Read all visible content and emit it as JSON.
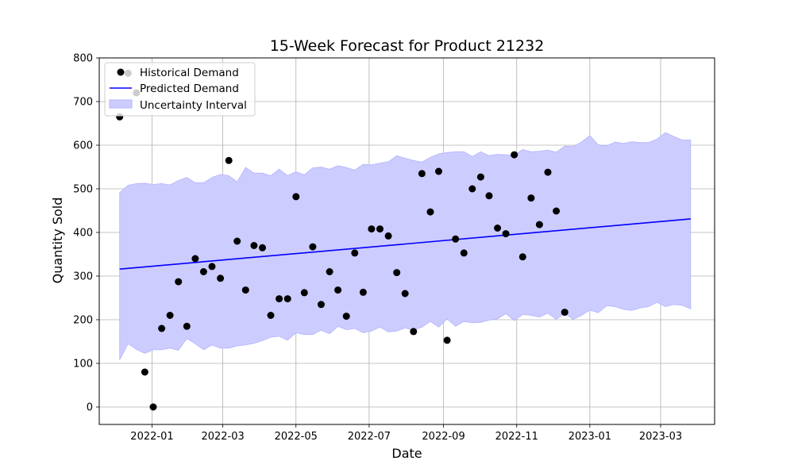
{
  "chart_data": {
    "type": "line",
    "title": "15-Week Forecast for Product 21232",
    "xlabel": "Date",
    "ylabel": "Quantity Sold",
    "xlim": [
      "2021-11-18",
      "2023-04-15"
    ],
    "ylim": [
      -40,
      800
    ],
    "grid": true,
    "legend_position": "top-left",
    "x_ticks": [
      "2022-01",
      "2022-03",
      "2022-05",
      "2022-07",
      "2022-09",
      "2022-11",
      "2023-01",
      "2023-03"
    ],
    "y_ticks": [
      "0",
      "100",
      "200",
      "300",
      "400",
      "500",
      "600",
      "700",
      "800"
    ],
    "colors": {
      "historical": "#000000",
      "predicted": "#0000ff",
      "interval": "#ccccff",
      "interval_edge": "#b3b3ff",
      "grid": "#b0b0b0"
    },
    "series": [
      {
        "name": "Historical Demand",
        "kind": "scatter",
        "x": [
          "2021-12-05",
          "2021-12-12",
          "2021-12-19",
          "2021-12-26",
          "2022-01-02",
          "2022-01-09",
          "2022-01-16",
          "2022-01-23",
          "2022-01-30",
          "2022-02-06",
          "2022-02-13",
          "2022-02-20",
          "2022-02-27",
          "2022-03-06",
          "2022-03-13",
          "2022-03-20",
          "2022-03-27",
          "2022-04-03",
          "2022-04-10",
          "2022-04-17",
          "2022-04-24",
          "2022-05-01",
          "2022-05-08",
          "2022-05-15",
          "2022-05-22",
          "2022-05-29",
          "2022-06-05",
          "2022-06-12",
          "2022-06-19",
          "2022-06-26",
          "2022-07-03",
          "2022-07-10",
          "2022-07-17",
          "2022-07-24",
          "2022-07-31",
          "2022-08-07",
          "2022-08-14",
          "2022-08-21",
          "2022-08-28",
          "2022-09-04",
          "2022-09-11",
          "2022-09-18",
          "2022-09-25",
          "2022-10-02",
          "2022-10-09",
          "2022-10-16",
          "2022-10-23",
          "2022-10-30",
          "2022-11-06",
          "2022-11-13",
          "2022-11-20",
          "2022-11-27",
          "2022-12-04",
          "2022-12-11"
        ],
        "y": [
          665,
          765,
          720,
          80,
          0,
          180,
          210,
          287,
          185,
          340,
          310,
          322,
          295,
          565,
          380,
          268,
          370,
          365,
          210,
          248,
          248,
          482,
          262,
          367,
          235,
          310,
          268,
          208,
          353,
          263,
          408,
          408,
          392,
          308,
          260,
          173,
          535,
          447,
          540,
          153,
          385,
          353,
          500,
          527,
          484,
          410,
          397,
          578,
          344,
          479,
          418,
          538,
          449,
          217
        ]
      },
      {
        "name": "Predicted Demand",
        "kind": "line",
        "x": [
          "2021-12-05",
          "2023-03-26"
        ],
        "y": [
          316,
          431
        ]
      },
      {
        "name": "Uncertainty Interval",
        "kind": "band",
        "x": [
          "2021-12-05",
          "2021-12-12",
          "2021-12-19",
          "2021-12-26",
          "2022-01-02",
          "2022-01-09",
          "2022-01-16",
          "2022-01-23",
          "2022-01-30",
          "2022-02-06",
          "2022-02-13",
          "2022-02-20",
          "2022-02-27",
          "2022-03-06",
          "2022-03-13",
          "2022-03-20",
          "2022-03-27",
          "2022-04-03",
          "2022-04-10",
          "2022-04-17",
          "2022-04-24",
          "2022-05-01",
          "2022-05-08",
          "2022-05-15",
          "2022-05-22",
          "2022-05-29",
          "2022-06-05",
          "2022-06-12",
          "2022-06-19",
          "2022-06-26",
          "2022-07-03",
          "2022-07-10",
          "2022-07-17",
          "2022-07-24",
          "2022-07-31",
          "2022-08-07",
          "2022-08-14",
          "2022-08-21",
          "2022-08-28",
          "2022-09-04",
          "2022-09-11",
          "2022-09-18",
          "2022-09-25",
          "2022-10-02",
          "2022-10-09",
          "2022-10-16",
          "2022-10-23",
          "2022-10-30",
          "2022-11-06",
          "2022-11-13",
          "2022-11-20",
          "2022-11-27",
          "2022-12-04",
          "2022-12-11",
          "2022-12-18",
          "2022-12-25",
          "2023-01-01",
          "2023-01-08",
          "2023-01-15",
          "2023-01-22",
          "2023-01-29",
          "2023-02-05",
          "2023-02-12",
          "2023-02-19",
          "2023-02-26",
          "2023-03-05",
          "2023-03-12",
          "2023-03-19",
          "2023-03-26"
        ],
        "lower": [
          108,
          145,
          132,
          123,
          131,
          131,
          135,
          130,
          157,
          145,
          131,
          142,
          135,
          135,
          140,
          142,
          146,
          152,
          160,
          162,
          153,
          170,
          166,
          166,
          176,
          168,
          185,
          177,
          180,
          170,
          174,
          183,
          172,
          174,
          181,
          176,
          183,
          196,
          183,
          202,
          185,
          196,
          193,
          194,
          199,
          202,
          214,
          198,
          212,
          210,
          206,
          215,
          201,
          215,
          201,
          210,
          222,
          216,
          232,
          230,
          224,
          221,
          227,
          230,
          240,
          230,
          235,
          233,
          225
        ],
        "upper": [
          491,
          508,
          512,
          513,
          510,
          512,
          509,
          519,
          526,
          514,
          514,
          526,
          533,
          530,
          516,
          549,
          536,
          536,
          530,
          545,
          530,
          539,
          532,
          548,
          550,
          545,
          553,
          549,
          543,
          556,
          555,
          559,
          562,
          576,
          570,
          565,
          561,
          572,
          580,
          583,
          585,
          585,
          574,
          585,
          576,
          579,
          578,
          577,
          590,
          585,
          586,
          589,
          584,
          598,
          597,
          607,
          622,
          601,
          598,
          607,
          604,
          608,
          606,
          606,
          614,
          629,
          620,
          612,
          612
        ]
      }
    ]
  }
}
